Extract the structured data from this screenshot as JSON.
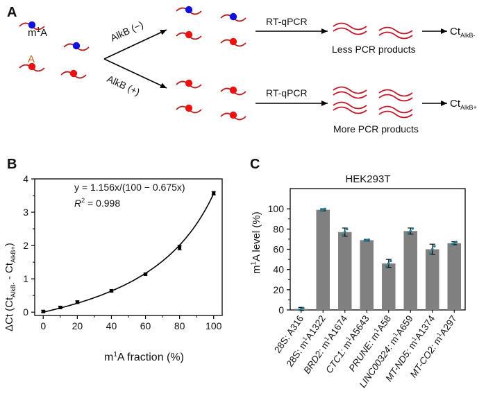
{
  "panel_a": {
    "label": "A",
    "m1a_label_base": "m",
    "m1a_label_sup": "1",
    "m1a_label_tail": "A",
    "a_label": "A",
    "alkb_minus": "AlkB (−)",
    "alkb_plus": "AlkB (+)",
    "rtqpcr_top": "RT-qPCR",
    "rtqpcr_bottom": "RT-qPCR",
    "less_products": "Less PCR products",
    "more_products": "More PCR products",
    "ct_minus_main": "Ct",
    "ct_minus_sub": "AlkB-",
    "ct_plus_main": "Ct",
    "ct_plus_sub": "AlkB+",
    "colors": {
      "rna": "#b22222",
      "m1a_dot": "#1010e0",
      "a_dot": "#ee1111",
      "product": "#c0182a"
    }
  },
  "panel_b": {
    "label": "B",
    "eq_line1": "y = 1.156x/(100 − 0.675x)",
    "eq_r_letter": "R",
    "eq_r_sup": "2",
    "eq_r_tail": " = 0.998",
    "ylabel_pre": "ΔCt (Ct",
    "ylabel_sub1": "AlkB-",
    "ylabel_mid": " - Ct",
    "ylabel_sub2": "AlkB+",
    "ylabel_post": ")",
    "xlabel_pre": "m",
    "xlabel_sup": "1",
    "xlabel_post": "A fraction (%)"
  },
  "panel_c": {
    "label": "C",
    "title": "HEK293T",
    "ylabel_pre": "m",
    "ylabel_sup": "1",
    "ylabel_post": "A level (%)",
    "xtick_labels": [
      {
        "gene": "28S",
        "site": "A316",
        "m1a": false
      },
      {
        "gene": "28S",
        "site": "A1322",
        "m1a": true
      },
      {
        "gene": "BRD2",
        "site": "A1674",
        "m1a": true
      },
      {
        "gene": "CTC1",
        "site": "A5643",
        "m1a": true
      },
      {
        "gene": "PRUNE",
        "site": "A58",
        "m1a": true
      },
      {
        "gene": "LINC00324",
        "site": "A659",
        "m1a": true
      },
      {
        "gene": "MT-ND5",
        "site": "A1374",
        "m1a": true
      },
      {
        "gene": "MT-CO2",
        "site": "A297",
        "m1a": true
      }
    ]
  },
  "chart_data": [
    {
      "type": "line",
      "panel": "B",
      "xlabel": "m1A fraction (%)",
      "ylabel": "ΔCt (CtAlkB- - CtAlkB+)",
      "xlim": [
        -5,
        105
      ],
      "ylim": [
        -0.1,
        4
      ],
      "xticks": [
        0,
        20,
        40,
        60,
        80,
        100
      ],
      "yticks": [
        0,
        1,
        2,
        3,
        4
      ],
      "points": {
        "x": [
          0,
          10,
          20,
          40,
          60,
          80,
          100
        ],
        "y": [
          0.02,
          0.14,
          0.3,
          0.64,
          1.14,
          1.94,
          3.57
        ],
        "err": [
          0.03,
          0.04,
          0.04,
          0.03,
          0.03,
          0.07,
          0.05
        ]
      },
      "fit": {
        "a": 1.156,
        "b": 100,
        "c": 0.675
      },
      "grid": false
    },
    {
      "type": "bar",
      "panel": "C",
      "title": "HEK293T",
      "ylabel": "m1A level (%)",
      "ylim": [
        0,
        120
      ],
      "yticks": [
        0,
        20,
        40,
        60,
        80,
        100
      ],
      "categories": [
        "28S: A316",
        "28S: m1A1322",
        "BRD2: m1A1674",
        "CTC1: m1A5643",
        "PRUNE: m1A58",
        "LINC00324: m1A659",
        "MT-ND5: m1A1374",
        "MT-CO2: m1A297"
      ],
      "values": [
        1,
        99,
        77,
        69,
        46,
        78,
        60,
        66
      ],
      "errors": [
        1.5,
        1,
        4,
        0.8,
        4,
        3,
        5,
        1.5
      ],
      "replicates": [
        [
          0.2,
          1.0,
          1.8
        ],
        [
          98.2,
          99.0,
          99.8
        ],
        [
          74,
          77,
          80
        ],
        [
          68.5,
          69,
          69.5
        ],
        [
          43,
          46,
          48.5
        ],
        [
          76,
          78,
          80.5
        ],
        [
          56,
          60,
          63
        ],
        [
          65,
          66,
          67.2
        ]
      ],
      "bar_color": "#808080",
      "dot_color": "#1f7a8c",
      "grid": false
    }
  ]
}
